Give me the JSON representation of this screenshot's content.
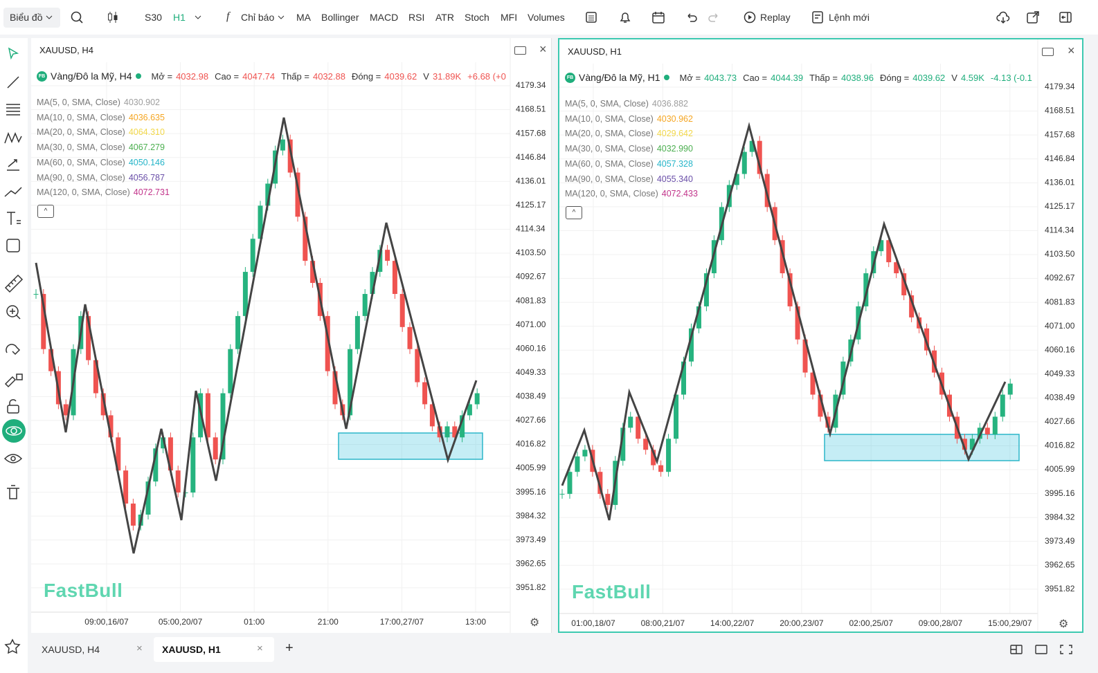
{
  "toolbar": {
    "chart_type": "Biểu đồ",
    "symbol": "S30",
    "interval": "H1",
    "indicators_label": "Chỉ báo",
    "indicators": [
      "MA",
      "Bollinger",
      "MACD",
      "RSI",
      "ATR",
      "Stoch",
      "MFI",
      "Volumes"
    ],
    "replay": "Replay",
    "new_order": "Lệnh mới"
  },
  "panels": [
    {
      "title": "XAUUSD, H4",
      "symbol_name": "Vàng/Đô la Mỹ, H4",
      "active": false,
      "quote_color": "#ef5350",
      "ohlc": [
        {
          "label": "Mở =",
          "value": "4032.98"
        },
        {
          "label": "Cao =",
          "value": "4047.74"
        },
        {
          "label": "Thấp =",
          "value": "4032.88"
        },
        {
          "label": "Đóng =",
          "value": "4039.62"
        }
      ],
      "volume_label": "V",
      "volume": "31.89K",
      "change": "+6.68 (+0",
      "ma": [
        {
          "name": "MA(5, 0, SMA, Close)",
          "value": "4030.902",
          "color": "#9e9e9e"
        },
        {
          "name": "MA(10, 0, SMA, Close)",
          "value": "4036.635",
          "color": "#f5a623"
        },
        {
          "name": "MA(20, 0, SMA, Close)",
          "value": "4064.310",
          "color": "#f2d84b"
        },
        {
          "name": "MA(30, 0, SMA, Close)",
          "value": "4067.279",
          "color": "#4caf50"
        },
        {
          "name": "MA(60, 0, SMA, Close)",
          "value": "4050.146",
          "color": "#26b5c9"
        },
        {
          "name": "MA(90, 0, SMA, Close)",
          "value": "4056.787",
          "color": "#6a4fa8"
        },
        {
          "name": "MA(120, 0, SMA, Close)",
          "value": "4072.731",
          "color": "#c2338a"
        }
      ],
      "price_range": [
        3940.8,
        4190.0
      ],
      "price_ticks": [
        4179.34,
        4168.51,
        4157.68,
        4146.84,
        4136.01,
        4125.17,
        4114.34,
        {
          "value": 4103.5,
          "label": "4103.50"
        },
        4092.67,
        4081.83,
        {
          "value": 4071,
          "label": "4071.00"
        },
        4060.16,
        4049.33,
        4038.49,
        4027.66,
        4016.82,
        4005.99,
        3995.16,
        3984.32,
        3973.49,
        3962.65,
        3951.82
      ],
      "time_labels": [
        "09:00,16/07",
        "05:00,20/07",
        "01:00",
        "21:00",
        "17:00,27/07",
        "13:00"
      ],
      "closes": [
        4085,
        4060,
        4050,
        4035,
        4030,
        4060,
        4075,
        4055,
        4040,
        4030,
        4020,
        4005,
        3990,
        3980,
        3985,
        4000,
        4015,
        4020,
        4005,
        3995,
        3995,
        4020,
        4040,
        4020,
        4010,
        4040,
        4060,
        4075,
        4095,
        4110,
        4125,
        4135,
        4150,
        4155,
        4140,
        4120,
        4100,
        4090,
        4075,
        4050,
        4035,
        4030,
        4060,
        4075,
        4085,
        4095,
        4105,
        4100,
        4085,
        4070,
        4060,
        4045,
        4035,
        4025,
        4020,
        4025,
        4020,
        4030,
        4035,
        4040
      ],
      "watermark": "FastBull"
    },
    {
      "title": "XAUUSD, H1",
      "symbol_name": "Vàng/Đô la Mỹ, H1",
      "active": true,
      "quote_color": "#1fae7c",
      "ohlc": [
        {
          "label": "Mở =",
          "value": "4043.73"
        },
        {
          "label": "Cao =",
          "value": "4044.39"
        },
        {
          "label": "Thấp =",
          "value": "4038.96"
        },
        {
          "label": "Đóng =",
          "value": "4039.62"
        }
      ],
      "volume_label": "V",
      "volume": "4.59K",
      "change": "-4.13 (-0.1",
      "ma": [
        {
          "name": "MA(5, 0, SMA, Close)",
          "value": "4036.882",
          "color": "#9e9e9e"
        },
        {
          "name": "MA(10, 0, SMA, Close)",
          "value": "4030.962",
          "color": "#f5a623"
        },
        {
          "name": "MA(20, 0, SMA, Close)",
          "value": "4029.642",
          "color": "#f2d84b"
        },
        {
          "name": "MA(30, 0, SMA, Close)",
          "value": "4032.990",
          "color": "#4caf50"
        },
        {
          "name": "MA(60, 0, SMA, Close)",
          "value": "4057.328",
          "color": "#26b5c9"
        },
        {
          "name": "MA(90, 0, SMA, Close)",
          "value": "4055.340",
          "color": "#6a4fa8"
        },
        {
          "name": "MA(120, 0, SMA, Close)",
          "value": "4072.433",
          "color": "#c2338a"
        }
      ],
      "price_range": [
        3940.8,
        4190.0
      ],
      "price_ticks": [
        4179.34,
        4168.51,
        4157.68,
        4146.84,
        4136.01,
        4125.17,
        4114.34,
        {
          "value": 4103.5,
          "label": "4103.50"
        },
        4092.67,
        4081.83,
        {
          "value": 4071,
          "label": "4071.00"
        },
        4060.16,
        4049.33,
        4038.49,
        4027.66,
        4016.82,
        4005.99,
        3995.16,
        3984.32,
        3973.49,
        3962.65,
        3951.82
      ],
      "time_labels": [
        "01:00,18/07",
        "08:00,21/07",
        "14:00,22/07",
        "20:00,23/07",
        "02:00,25/07",
        "09:00,28/07",
        "15:00,29/07"
      ],
      "closes": [
        3995,
        4005,
        4012,
        4015,
        4005,
        3995,
        3990,
        4010,
        4025,
        4030,
        4020,
        4015,
        4008,
        4005,
        4020,
        4040,
        4055,
        4070,
        4080,
        4095,
        4110,
        4125,
        4135,
        4140,
        4150,
        4155,
        4140,
        4125,
        4110,
        4095,
        4080,
        4065,
        4050,
        4040,
        4030,
        4025,
        4040,
        4055,
        4065,
        4080,
        4095,
        4105,
        4110,
        4100,
        4095,
        4085,
        4075,
        4070,
        4060,
        4050,
        4040,
        4030,
        4020,
        4015,
        4020,
        4025,
        4022,
        4030,
        4040,
        4045
      ],
      "watermark": "FastBull"
    }
  ],
  "tabs": [
    "XAUUSD, H4",
    "XAUUSD, H1"
  ]
}
